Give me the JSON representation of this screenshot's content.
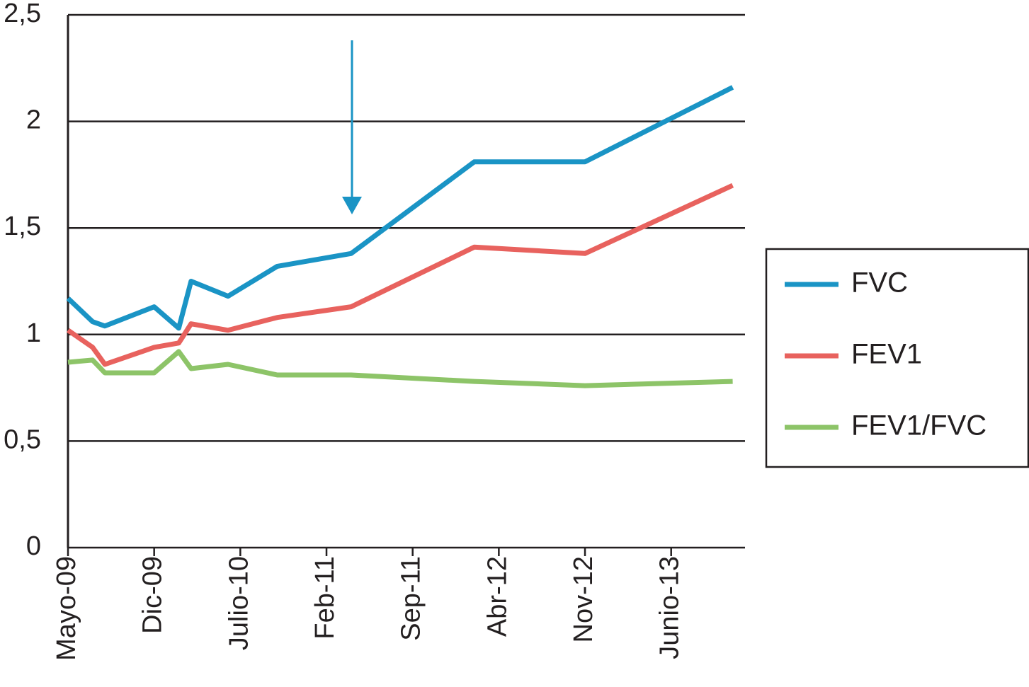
{
  "chart_data": {
    "type": "line",
    "x": [
      "2009-05",
      "2009-07",
      "2009-08",
      "2009-12",
      "2010-02",
      "2010-03",
      "2010-06",
      "2010-10",
      "2011-04",
      "2012-02",
      "2012-11",
      "2013-11"
    ],
    "series": [
      {
        "name": "FVC",
        "color": "#1a94c5",
        "values": [
          1.17,
          1.06,
          1.04,
          1.13,
          1.03,
          1.25,
          1.18,
          1.32,
          1.38,
          1.81,
          1.81,
          2.16
        ]
      },
      {
        "name": "FEV1",
        "color": "#e8625e",
        "values": [
          1.02,
          0.94,
          0.86,
          0.94,
          0.96,
          1.05,
          1.02,
          1.08,
          1.13,
          1.41,
          1.38,
          1.7
        ]
      },
      {
        "name": "FEV1/FVC",
        "color": "#8dc468",
        "values": [
          0.87,
          0.88,
          0.82,
          0.82,
          0.92,
          0.84,
          0.86,
          0.81,
          0.81,
          0.78,
          0.76,
          0.78
        ]
      }
    ],
    "xlim": [
      "2009-05",
      "2013-12"
    ],
    "xticks": [
      {
        "value": "2009-05",
        "label": "Mayo-09"
      },
      {
        "value": "2009-12",
        "label": "Dic-09"
      },
      {
        "value": "2010-07",
        "label": "Julio-10"
      },
      {
        "value": "2011-02",
        "label": "Feb-11"
      },
      {
        "value": "2011-09",
        "label": "Sep-11"
      },
      {
        "value": "2012-04",
        "label": "Abr-12"
      },
      {
        "value": "2012-11",
        "label": "Nov-12"
      },
      {
        "value": "2013-06",
        "label": "Junio-13"
      }
    ],
    "ylim": [
      0,
      2.5
    ],
    "yticks": [
      0,
      {
        "value": 0.5,
        "label": "0,5"
      },
      1,
      {
        "value": 1.5,
        "label": "1,5"
      },
      2,
      {
        "value": 2.5,
        "label": "2,5"
      }
    ],
    "grid": true
  }
}
